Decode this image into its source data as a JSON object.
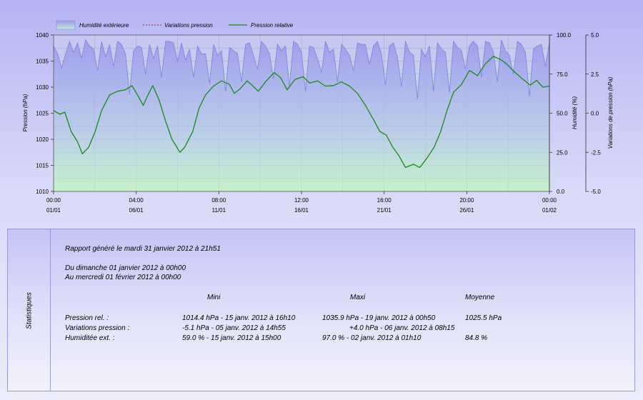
{
  "chart_data": {
    "type": "line",
    "x_tick_labels": [
      {
        "time": "00:00",
        "date": "01/01"
      },
      {
        "time": "04:00",
        "date": "06/01"
      },
      {
        "time": "08:00",
        "date": "11/01"
      },
      {
        "time": "12:00",
        "date": "16/01"
      },
      {
        "time": "16:00",
        "date": "21/01"
      },
      {
        "time": "20:00",
        "date": "26/01"
      },
      {
        "time": "00:00",
        "date": "01/02"
      }
    ],
    "x_range_days": [
      0,
      31
    ],
    "left_axis": {
      "label": "Pression (hPa)",
      "range": [
        1010,
        1040
      ],
      "ticks": [
        "1010",
        "1015",
        "1020",
        "1025",
        "1030",
        "1035",
        "1040"
      ]
    },
    "right_axis_1": {
      "label": "Humidité (%)",
      "range": [
        0,
        100
      ],
      "ticks": [
        "0.0",
        "25.0",
        "50.0",
        "75.0",
        "100.0"
      ]
    },
    "right_axis_2": {
      "label": "Variations de pression (hPa)",
      "range": [
        -5,
        5
      ],
      "ticks": [
        "-5.0",
        "-2.5",
        "0.0",
        "2.5",
        "5.0"
      ]
    },
    "grid": true,
    "legend_position": "top",
    "legend": [
      {
        "label": "Humidité extérieure",
        "style": "area",
        "color": "#9a9aee"
      },
      {
        "label": "Variations pression",
        "style": "dashed",
        "color": "#cc2222"
      },
      {
        "label": "Pression relative",
        "style": "line",
        "color": "#1a8a1a"
      }
    ],
    "series": [
      {
        "name": "Pression relative",
        "axis": "left",
        "points": [
          [
            0,
            1025.5
          ],
          [
            0.4,
            1024.8
          ],
          [
            0.7,
            1025.2
          ],
          [
            1.1,
            1021.5
          ],
          [
            1.5,
            1019.5
          ],
          [
            1.8,
            1017.2
          ],
          [
            2.2,
            1018.5
          ],
          [
            2.6,
            1021.5
          ],
          [
            3.0,
            1025.5
          ],
          [
            3.5,
            1028.5
          ],
          [
            4.0,
            1029.2
          ],
          [
            4.5,
            1029.5
          ],
          [
            4.9,
            1030.3
          ],
          [
            5.3,
            1028.2
          ],
          [
            5.6,
            1026.5
          ],
          [
            5.9,
            1028.5
          ],
          [
            6.2,
            1030.3
          ],
          [
            6.6,
            1027.5
          ],
          [
            7.0,
            1023.5
          ],
          [
            7.4,
            1020.0
          ],
          [
            7.9,
            1017.5
          ],
          [
            8.2,
            1018.5
          ],
          [
            8.7,
            1021.5
          ],
          [
            9.1,
            1026.0
          ],
          [
            9.5,
            1028.5
          ],
          [
            10.0,
            1030.2
          ],
          [
            10.5,
            1031.2
          ],
          [
            11.0,
            1030.5
          ],
          [
            11.3,
            1028.8
          ],
          [
            11.7,
            1029.8
          ],
          [
            12.1,
            1031.2
          ],
          [
            12.4,
            1030.4
          ],
          [
            12.8,
            1029.2
          ],
          [
            13.3,
            1031.2
          ],
          [
            13.8,
            1032.8
          ],
          [
            14.2,
            1031.8
          ],
          [
            14.6,
            1029.5
          ],
          [
            15.1,
            1031.5
          ],
          [
            15.6,
            1032.0
          ],
          [
            16.0,
            1030.8
          ],
          [
            16.5,
            1031.2
          ],
          [
            17.0,
            1030.2
          ],
          [
            17.5,
            1030.3
          ],
          [
            18.0,
            1031.0
          ],
          [
            18.5,
            1030.2
          ],
          [
            19.0,
            1028.8
          ],
          [
            19.5,
            1026.5
          ],
          [
            20.0,
            1023.8
          ],
          [
            20.4,
            1021.5
          ],
          [
            20.8,
            1020.8
          ],
          [
            21.2,
            1018.5
          ],
          [
            21.6,
            1016.8
          ],
          [
            22.0,
            1014.6
          ],
          [
            22.5,
            1015.2
          ],
          [
            22.9,
            1014.6
          ],
          [
            23.3,
            1016.2
          ],
          [
            23.8,
            1018.5
          ],
          [
            24.2,
            1021.5
          ],
          [
            24.6,
            1025.5
          ],
          [
            25.0,
            1029.0
          ],
          [
            25.5,
            1030.5
          ],
          [
            26.0,
            1033.2
          ],
          [
            26.5,
            1032.2
          ],
          [
            27.0,
            1034.5
          ],
          [
            27.5,
            1035.9
          ],
          [
            28.0,
            1035.2
          ],
          [
            28.3,
            1034.5
          ],
          [
            28.8,
            1033.0
          ],
          [
            29.3,
            1031.6
          ],
          [
            29.8,
            1030.4
          ],
          [
            30.2,
            1031.3
          ],
          [
            30.6,
            1030.0
          ],
          [
            31.0,
            1030.2
          ]
        ],
        "color": "#1a8a1a"
      },
      {
        "name": "Humidité extérieure",
        "axis": "right_1",
        "points": [
          [
            0,
            93
          ],
          [
            0.25,
            88
          ],
          [
            0.5,
            79
          ],
          [
            0.75,
            88
          ],
          [
            1.0,
            96
          ],
          [
            1.25,
            89
          ],
          [
            1.5,
            95
          ],
          [
            1.75,
            85
          ],
          [
            2.0,
            97
          ],
          [
            2.25,
            93
          ],
          [
            2.5,
            91
          ],
          [
            2.75,
            77
          ],
          [
            3.0,
            96
          ],
          [
            3.25,
            86
          ],
          [
            3.5,
            94
          ],
          [
            3.75,
            80
          ],
          [
            4.0,
            96
          ],
          [
            4.25,
            94
          ],
          [
            4.5,
            88
          ],
          [
            4.75,
            62
          ],
          [
            5.0,
            90
          ],
          [
            5.25,
            93
          ],
          [
            5.5,
            92
          ],
          [
            5.75,
            75
          ],
          [
            6.0,
            94
          ],
          [
            6.25,
            85
          ],
          [
            6.5,
            93
          ],
          [
            6.75,
            73
          ],
          [
            7.0,
            96
          ],
          [
            7.25,
            96
          ],
          [
            7.5,
            95
          ],
          [
            7.75,
            83
          ],
          [
            8.0,
            95
          ],
          [
            8.25,
            84
          ],
          [
            8.5,
            91
          ],
          [
            8.75,
            73
          ],
          [
            9.0,
            93
          ],
          [
            9.25,
            88
          ],
          [
            9.5,
            88
          ],
          [
            9.75,
            69
          ],
          [
            10.0,
            94
          ],
          [
            10.25,
            87
          ],
          [
            10.5,
            90
          ],
          [
            10.75,
            64
          ],
          [
            11.0,
            92
          ],
          [
            11.25,
            90
          ],
          [
            11.5,
            88
          ],
          [
            11.75,
            70
          ],
          [
            12.0,
            94
          ],
          [
            12.25,
            95
          ],
          [
            12.5,
            87
          ],
          [
            12.75,
            78
          ],
          [
            13.0,
            96
          ],
          [
            13.25,
            93
          ],
          [
            13.5,
            88
          ],
          [
            13.75,
            72
          ],
          [
            14.0,
            94
          ],
          [
            14.25,
            90
          ],
          [
            14.5,
            93
          ],
          [
            14.75,
            67
          ],
          [
            15.0,
            96
          ],
          [
            15.25,
            94
          ],
          [
            15.5,
            89
          ],
          [
            15.75,
            64
          ],
          [
            16.0,
            93
          ],
          [
            16.25,
            92
          ],
          [
            16.5,
            85
          ],
          [
            16.75,
            76
          ],
          [
            17.0,
            96
          ],
          [
            17.25,
            89
          ],
          [
            17.5,
            91
          ],
          [
            17.75,
            70
          ],
          [
            18.0,
            94
          ],
          [
            18.25,
            91
          ],
          [
            18.5,
            87
          ],
          [
            18.75,
            77
          ],
          [
            19.0,
            95
          ],
          [
            19.25,
            94
          ],
          [
            19.5,
            94
          ],
          [
            19.75,
            81
          ],
          [
            20.0,
            93
          ],
          [
            20.25,
            96
          ],
          [
            20.5,
            88
          ],
          [
            20.75,
            68
          ],
          [
            21.0,
            93
          ],
          [
            21.25,
            95
          ],
          [
            21.5,
            86
          ],
          [
            21.75,
            67
          ],
          [
            22.0,
            96
          ],
          [
            22.25,
            89
          ],
          [
            22.5,
            87
          ],
          [
            22.75,
            59
          ],
          [
            23.0,
            91
          ],
          [
            23.25,
            86
          ],
          [
            23.5,
            93
          ],
          [
            23.75,
            64
          ],
          [
            24.0,
            95
          ],
          [
            24.25,
            91
          ],
          [
            24.5,
            89
          ],
          [
            24.75,
            63
          ],
          [
            25.0,
            96
          ],
          [
            25.25,
            92
          ],
          [
            25.5,
            90
          ],
          [
            25.75,
            78
          ],
          [
            26.0,
            93
          ],
          [
            26.25,
            96
          ],
          [
            26.5,
            93
          ],
          [
            26.75,
            73
          ],
          [
            27.0,
            96
          ],
          [
            27.25,
            95
          ],
          [
            27.5,
            89
          ],
          [
            27.75,
            70
          ],
          [
            28.0,
            97
          ],
          [
            28.25,
            90
          ],
          [
            28.5,
            87
          ],
          [
            28.75,
            75
          ],
          [
            29.0,
            96
          ],
          [
            29.25,
            94
          ],
          [
            29.5,
            89
          ],
          [
            29.75,
            61
          ],
          [
            30.0,
            91
          ],
          [
            30.25,
            93
          ],
          [
            30.5,
            94
          ],
          [
            30.75,
            80
          ],
          [
            31.0,
            95
          ]
        ],
        "color": "#9a9aee"
      }
    ]
  },
  "stats": {
    "side_label": "Statistiques",
    "report_line": "Rapport généré le mardi 31 janvier 2012 à 21h51",
    "from_line": "Du dimanche 01 janvier 2012 à 00h00",
    "to_line": "Au mercredi 01 février 2012 à 00h00",
    "headers": {
      "min": "Mini",
      "max": "Maxi",
      "avg": "Moyenne"
    },
    "rows": [
      {
        "label": "Pression rel. :",
        "min": "1014.4 hPa - 15 janv. 2012 à 16h10",
        "max": "1035.9 hPa - 19 janv. 2012 à 00h50",
        "avg": "1025.5 hPa"
      },
      {
        "label": "Variations pression :",
        "min": "-5.1 hPa - 05 janv. 2012 à 14h55",
        "max": "+4.0 hPa - 06 janv. 2012 à 08h15",
        "avg": ""
      },
      {
        "label": "Humiditée ext. :",
        "min": "59.0 % - 15 janv. 2012 à 15h00",
        "max": "97.0 % - 02 janv. 2012 à 01h10",
        "avg": "84.8 %"
      }
    ]
  }
}
